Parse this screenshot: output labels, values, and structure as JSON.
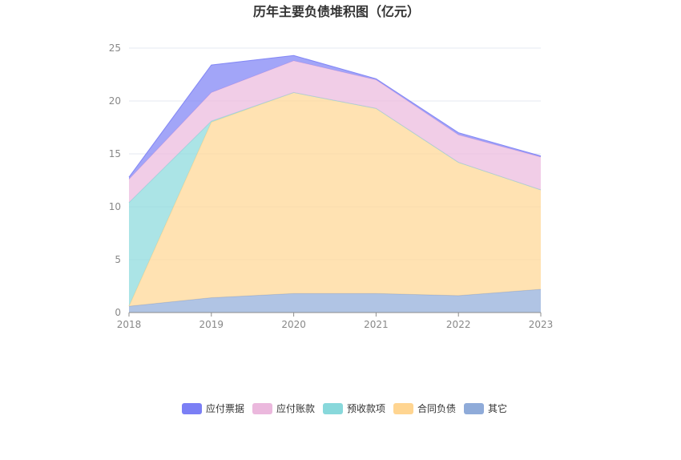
{
  "chart_data": {
    "type": "area",
    "stacked": true,
    "title": "历年主要负债堆积图（亿元）",
    "x": [
      "2018",
      "2019",
      "2020",
      "2021",
      "2022",
      "2023"
    ],
    "ylim": [
      0,
      25
    ],
    "yticks": [
      "0",
      "5",
      "10",
      "15",
      "20",
      "25"
    ],
    "grid": true,
    "legend_position": "bottom",
    "series": [
      {
        "name": "其它",
        "color": "#8fabd9",
        "values": [
          0.6,
          1.4,
          1.8,
          1.8,
          1.6,
          2.2
        ]
      },
      {
        "name": "合同负债",
        "color": "#ffd591",
        "values": [
          0.0,
          16.6,
          19.0,
          17.5,
          12.6,
          9.4
        ]
      },
      {
        "name": "预收款项",
        "color": "#88d8db",
        "values": [
          9.8,
          0.1,
          0.0,
          0.0,
          0.0,
          0.0
        ]
      },
      {
        "name": "应付账款",
        "color": "#ebb8dd",
        "values": [
          2.2,
          2.7,
          3.0,
          2.7,
          2.6,
          3.1
        ]
      },
      {
        "name": "应付票据",
        "color": "#7b7ff5",
        "values": [
          0.2,
          2.6,
          0.5,
          0.1,
          0.2,
          0.1
        ]
      }
    ],
    "legend": [
      "应付票据",
      "应付账款",
      "预收款项",
      "合同负债",
      "其它"
    ]
  }
}
